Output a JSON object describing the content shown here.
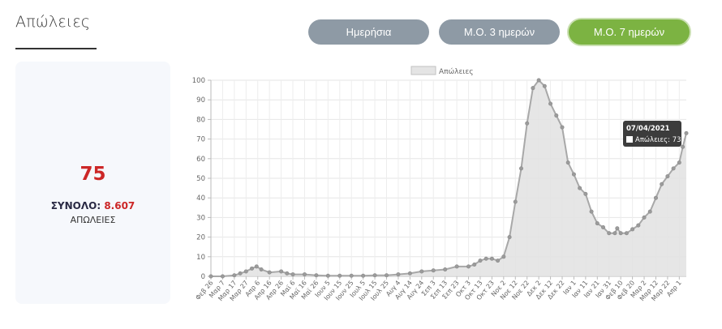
{
  "header": {
    "title": "Απώλειες"
  },
  "tabs": [
    {
      "label": "Ημερήσια",
      "active": false
    },
    {
      "label": "Μ.Ο. 3 ημερών",
      "active": false
    },
    {
      "label": "Μ.Ο. 7 ημερών",
      "active": true
    }
  ],
  "summary": {
    "value": "75",
    "total_label": "ΣΥΝΟΛΟ:",
    "total_value": "8.607",
    "caption": "ΑΠΩΛΕΙΕΣ"
  },
  "tooltip": {
    "date": "07/04/2021",
    "label": "Απώλειες: 73"
  },
  "colors": {
    "accent_red": "#cc2727",
    "active_tab": "#7cb342",
    "inactive_tab": "#8e9aa5"
  },
  "chart_data": {
    "type": "area",
    "legend": "Απώλειες",
    "legend_position": "top",
    "grid": true,
    "ylim": [
      0,
      100
    ],
    "yticks": [
      0,
      10,
      20,
      30,
      40,
      50,
      60,
      70,
      80,
      90,
      100
    ],
    "xticks": [
      "Φεβ 26",
      "Μαρ 7",
      "Μαρ 17",
      "Μαρ 27",
      "Απρ 6",
      "Απρ 16",
      "Απρ 26",
      "Μαϊ 6",
      "Μαϊ 16",
      "Μαϊ 26",
      "Ιουν 5",
      "Ιουν 15",
      "Ιουν 25",
      "Ιουλ 5",
      "Ιουλ 15",
      "Ιουλ 25",
      "Αυγ 4",
      "Αυγ 14",
      "Αυγ 24",
      "Σεπ 3",
      "Σεπ 13",
      "Σεπ 23",
      "Οκτ 3",
      "Οκτ 13",
      "Οκτ 23",
      "Νοε 2",
      "Νοε 12",
      "Νοε 22",
      "Δεκ 2",
      "Δεκ 12",
      "Δεκ 22",
      "Ιαν 1",
      "Ιαν 11",
      "Ιαν 21",
      "Ιαν 31",
      "Φεβ 10",
      "Φεβ 20",
      "Μαρ 2",
      "Μαρ 12",
      "Μαρ 22",
      "Απρ 1"
    ],
    "x_start": "2020-02-26",
    "x_end": "2021-04-07",
    "series": [
      {
        "name": "Απώλειες",
        "points": [
          [
            "2020-02-26",
            0
          ],
          [
            "2020-03-07",
            0
          ],
          [
            "2020-03-17",
            0.5
          ],
          [
            "2020-03-22",
            1.5
          ],
          [
            "2020-03-27",
            2.5
          ],
          [
            "2020-04-01",
            4
          ],
          [
            "2020-04-05",
            5
          ],
          [
            "2020-04-09",
            3.5
          ],
          [
            "2020-04-16",
            2
          ],
          [
            "2020-04-26",
            2.5
          ],
          [
            "2020-05-01",
            1.5
          ],
          [
            "2020-05-06",
            1
          ],
          [
            "2020-05-16",
            1
          ],
          [
            "2020-05-26",
            0.5
          ],
          [
            "2020-06-05",
            0.3
          ],
          [
            "2020-06-15",
            0.3
          ],
          [
            "2020-06-25",
            0.3
          ],
          [
            "2020-07-05",
            0.3
          ],
          [
            "2020-07-15",
            0.5
          ],
          [
            "2020-07-25",
            0.5
          ],
          [
            "2020-08-04",
            1
          ],
          [
            "2020-08-14",
            1.5
          ],
          [
            "2020-08-24",
            2.5
          ],
          [
            "2020-09-03",
            3
          ],
          [
            "2020-09-13",
            3.5
          ],
          [
            "2020-09-23",
            5
          ],
          [
            "2020-10-03",
            5
          ],
          [
            "2020-10-08",
            6
          ],
          [
            "2020-10-13",
            8
          ],
          [
            "2020-10-18",
            9
          ],
          [
            "2020-10-23",
            9
          ],
          [
            "2020-10-28",
            8
          ],
          [
            "2020-11-02",
            10
          ],
          [
            "2020-11-07",
            20
          ],
          [
            "2020-11-12",
            38
          ],
          [
            "2020-11-17",
            55
          ],
          [
            "2020-11-22",
            78
          ],
          [
            "2020-11-27",
            96
          ],
          [
            "2020-12-02",
            100
          ],
          [
            "2020-12-07",
            97
          ],
          [
            "2020-12-12",
            88
          ],
          [
            "2020-12-17",
            82
          ],
          [
            "2020-12-22",
            76
          ],
          [
            "2020-12-27",
            58
          ],
          [
            "2021-01-01",
            52
          ],
          [
            "2021-01-06",
            45
          ],
          [
            "2021-01-11",
            42
          ],
          [
            "2021-01-16",
            33
          ],
          [
            "2021-01-21",
            27
          ],
          [
            "2021-01-26",
            25
          ],
          [
            "2021-01-31",
            22
          ],
          [
            "2021-02-05",
            22
          ],
          [
            "2021-02-07",
            24.5
          ],
          [
            "2021-02-10",
            22
          ],
          [
            "2021-02-15",
            22
          ],
          [
            "2021-02-20",
            24
          ],
          [
            "2021-02-25",
            26
          ],
          [
            "2021-03-02",
            30
          ],
          [
            "2021-03-07",
            33
          ],
          [
            "2021-03-12",
            40
          ],
          [
            "2021-03-17",
            47
          ],
          [
            "2021-03-22",
            51
          ],
          [
            "2021-03-27",
            55
          ],
          [
            "2021-04-01",
            58
          ],
          [
            "2021-04-04",
            66
          ],
          [
            "2021-04-07",
            73
          ]
        ]
      }
    ]
  }
}
